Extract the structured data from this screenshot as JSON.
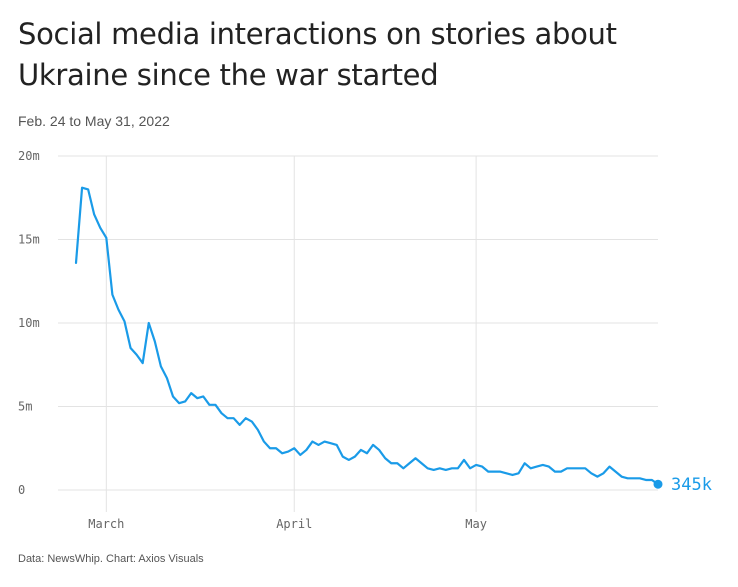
{
  "header": {
    "title": "Social media interactions on stories about Ukraine since the war started",
    "subtitle": "Feb. 24 to May 31, 2022"
  },
  "footer": {
    "source": "Data: NewsWhip. Chart: Axios Visuals"
  },
  "chart_data": {
    "type": "line",
    "title": "Social media interactions on stories about Ukraine since the war started",
    "subtitle": "Feb. 24 to May 31, 2022",
    "xlabel": "",
    "ylabel": "",
    "x_start": "2022-02-24",
    "x_end": "2022-05-31",
    "xlim": [
      "2022-02-24",
      "2022-05-31"
    ],
    "ylim": [
      0,
      20000000
    ],
    "grid": true,
    "line_color": "#1a9be8",
    "y_ticks": [
      {
        "value": 0,
        "label": "0"
      },
      {
        "value": 5000000,
        "label": "5m"
      },
      {
        "value": 10000000,
        "label": "10m"
      },
      {
        "value": 15000000,
        "label": "15m"
      },
      {
        "value": 20000000,
        "label": "20m"
      }
    ],
    "x_ticks": [
      {
        "date": "2022-03-01",
        "label": "March"
      },
      {
        "date": "2022-04-01",
        "label": "April"
      },
      {
        "date": "2022-05-01",
        "label": "May"
      }
    ],
    "end_label": "345k",
    "series": [
      {
        "values": [
          13600000,
          18100000,
          18000000,
          16500000,
          15700000,
          15100000,
          11700000,
          10800000,
          10100000,
          8500000,
          8100000,
          7600000,
          10000000,
          8900000,
          7400000,
          6700000,
          5600000,
          5200000,
          5300000,
          5800000,
          5500000,
          5600000,
          5100000,
          5100000,
          4600000,
          4300000,
          4300000,
          3900000,
          4300000,
          4100000,
          3600000,
          2900000,
          2500000,
          2500000,
          2200000,
          2300000,
          2500000,
          2100000,
          2400000,
          2900000,
          2700000,
          2900000,
          2800000,
          2700000,
          2000000,
          1800000,
          2000000,
          2400000,
          2200000,
          2700000,
          2400000,
          1900000,
          1600000,
          1600000,
          1300000,
          1600000,
          1900000,
          1600000,
          1300000,
          1200000,
          1300000,
          1200000,
          1300000,
          1300000,
          1800000,
          1300000,
          1500000,
          1400000,
          1100000,
          1100000,
          1100000,
          1000000,
          900000,
          1000000,
          1600000,
          1300000,
          1400000,
          1500000,
          1400000,
          1100000,
          1100000,
          1300000,
          1300000,
          1300000,
          1300000,
          1000000,
          800000,
          1000000,
          1400000,
          1100000,
          800000,
          700000,
          700000,
          700000,
          600000,
          600000,
          345000
        ]
      }
    ]
  }
}
